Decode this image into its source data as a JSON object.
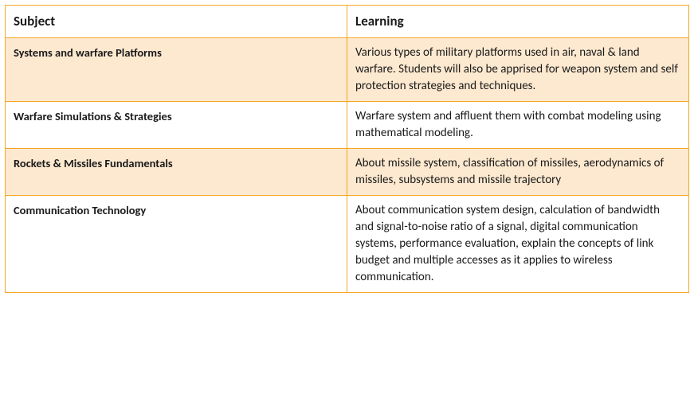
{
  "table": {
    "border_color": "#f5a623",
    "shaded_bg": "#fde9d0",
    "plain_bg": "#ffffff",
    "header_font_size": 17,
    "body_font_size": 15,
    "columns": [
      {
        "key": "subject",
        "label": "Subject",
        "width_pct": 50
      },
      {
        "key": "learning",
        "label": "Learning",
        "width_pct": 50
      }
    ],
    "rows": [
      {
        "shaded": true,
        "subject": "Systems and warfare Platforms",
        "learning": "Various types of military platforms used in air, naval & land warfare. Students will also be apprised for weapon system and self protection strategies and techniques."
      },
      {
        "shaded": false,
        "subject": "Warfare Simulations & Strategies",
        "learning": "Warfare system and affluent them with combat modeling using mathematical modeling."
      },
      {
        "shaded": true,
        "subject": "Rockets & Missiles Fundamentals",
        "learning": "About missile system, classification of missiles, aerodynamics of missiles, subsystems and missile trajectory"
      },
      {
        "shaded": false,
        "subject": "Communication Technology",
        "learning": "About communication system design, calculation of bandwidth and signal-to-noise ratio of a signal, digital communication systems, performance evaluation, explain the concepts of link budget and multiple accesses as it applies to wireless communication."
      }
    ]
  }
}
